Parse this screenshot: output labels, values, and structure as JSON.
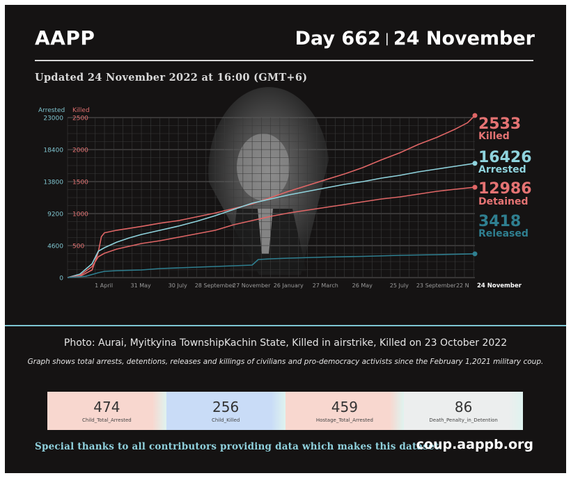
{
  "header": {
    "org": "AAPP",
    "day_label": "Day 662",
    "separator": "|",
    "date_label": "24 November",
    "updated": "Updated 24 November 2022 at 16:00 (GMT+6)"
  },
  "chart_data": {
    "type": "line",
    "left_axis": {
      "label": "Arrested",
      "ticks": [
        0,
        4600,
        9200,
        13800,
        18400,
        23000
      ],
      "tick_labels": [
        "0",
        "4600",
        "9200",
        "13800",
        "18400",
        "23000"
      ],
      "range": [
        0,
        23000
      ],
      "color": "#7fc4cf"
    },
    "right_axis": {
      "label": "Killed",
      "ticks": [
        0,
        500,
        1000,
        1500,
        2000,
        2500
      ],
      "tick_labels": [
        "",
        "500",
        "1000",
        "1500",
        "2000",
        "2500"
      ],
      "range": [
        0,
        2500
      ],
      "color": "#e07070"
    },
    "x_tick_labels": [
      "1 April",
      "31 May",
      "30 July",
      "28 September",
      "27 November",
      "26 January",
      "27 March",
      "26 May",
      "25 July",
      "23 September",
      "22 N",
      "24 November"
    ],
    "x_tick_days": [
      59,
      119,
      179,
      239,
      299,
      359,
      419,
      479,
      539,
      599,
      642,
      662
    ],
    "x_range": [
      0,
      662
    ],
    "grid": true,
    "series": [
      {
        "name": "Killed",
        "axis": "right",
        "color": "#e06666",
        "x": [
          0,
          20,
          40,
          50,
          55,
          60,
          80,
          100,
          120,
          150,
          180,
          210,
          240,
          270,
          300,
          330,
          360,
          390,
          420,
          450,
          480,
          510,
          540,
          570,
          600,
          630,
          650,
          662
        ],
        "y": [
          0,
          20,
          120,
          400,
          640,
          700,
          740,
          770,
          800,
          850,
          890,
          950,
          1010,
          1080,
          1150,
          1250,
          1350,
          1440,
          1530,
          1620,
          1720,
          1840,
          1950,
          2080,
          2190,
          2320,
          2420,
          2533
        ]
      },
      {
        "name": "Arrested",
        "axis": "left",
        "color": "#8fd3dd",
        "x": [
          0,
          20,
          40,
          50,
          60,
          80,
          100,
          120,
          150,
          180,
          210,
          240,
          270,
          300,
          330,
          360,
          390,
          420,
          450,
          480,
          510,
          540,
          570,
          600,
          630,
          662
        ],
        "y": [
          0,
          500,
          2000,
          3800,
          4300,
          5100,
          5700,
          6200,
          6800,
          7400,
          8100,
          8900,
          9800,
          10700,
          11300,
          11900,
          12400,
          12900,
          13400,
          13800,
          14300,
          14700,
          15200,
          15600,
          16000,
          16426
        ]
      },
      {
        "name": "Detained",
        "axis": "left",
        "color": "#e06666",
        "x": [
          0,
          20,
          40,
          50,
          60,
          80,
          100,
          120,
          150,
          180,
          210,
          240,
          270,
          300,
          330,
          360,
          390,
          420,
          450,
          480,
          510,
          540,
          570,
          600,
          630,
          662
        ],
        "y": [
          0,
          300,
          1600,
          3000,
          3500,
          4100,
          4500,
          4900,
          5300,
          5800,
          6300,
          6800,
          7600,
          8200,
          8800,
          9300,
          9700,
          10100,
          10500,
          10900,
          11300,
          11600,
          12000,
          12400,
          12700,
          12986
        ]
      },
      {
        "name": "Released",
        "axis": "left",
        "color": "#2f7f90",
        "x": [
          0,
          30,
          50,
          60,
          80,
          120,
          150,
          180,
          210,
          240,
          270,
          300,
          310,
          330,
          360,
          420,
          480,
          540,
          600,
          662
        ],
        "y": [
          0,
          200,
          700,
          900,
          1000,
          1100,
          1300,
          1400,
          1500,
          1600,
          1700,
          1800,
          2600,
          2700,
          2800,
          2950,
          3050,
          3200,
          3300,
          3418
        ]
      }
    ],
    "end_labels": [
      {
        "value": "2533",
        "name": "Killed",
        "color": "#e57373"
      },
      {
        "value": "16426",
        "name": "Arrested",
        "color": "#8fd3dd"
      },
      {
        "value": "12986",
        "name": "Detained",
        "color": "#e57373"
      },
      {
        "value": "3418",
        "name": "Released",
        "color": "#2f7f90"
      }
    ]
  },
  "photo_caption": "Photo: Aurai, Myitkyina TownshipKachin State, Killed in airstrike, Killed on 23 October 2022",
  "note": "Graph shows total arrests, detentions, releases and killings of civilians and pro-democracy activists since the February 1,2021 military coup.",
  "stats": [
    {
      "value": "474",
      "label": "Child_Total_Arrested",
      "color": "#f8d7cf"
    },
    {
      "value": "256",
      "label": "Child_Killed",
      "color": "#c9dcf7"
    },
    {
      "value": "459",
      "label": "Hostage_Total_Arrested",
      "color": "#f8d7cf"
    },
    {
      "value": "86",
      "label": "Death_Penalty_in_Detention",
      "color": "#eceeee"
    }
  ],
  "stats_edge_color": "#dff3ef",
  "footer": {
    "thanks": "Special thanks to all contributors providing data which makes this dataset.",
    "site": "coup.aappb.org"
  }
}
